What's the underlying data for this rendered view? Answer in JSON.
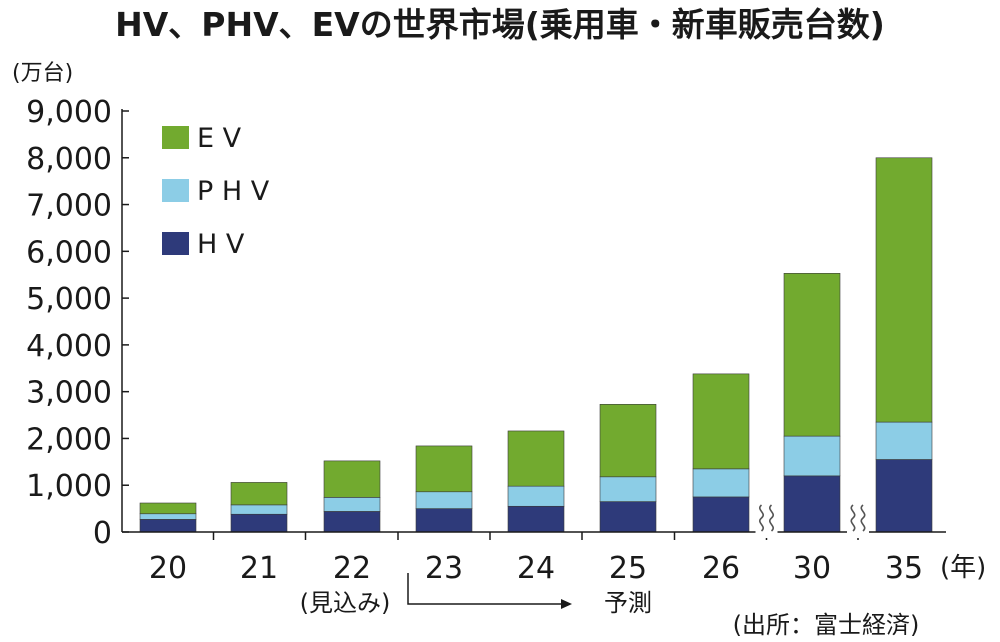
{
  "chart_data": {
    "type": "bar",
    "stacked": true,
    "title": "HV、PHV、EVの世界市場(乗用車・新車販売台数)",
    "ylabel": "(万台)",
    "xlabel": "(年)",
    "ylim": [
      0,
      9000
    ],
    "yticks": [
      "0",
      "1,000",
      "2,000",
      "3,000",
      "4,000",
      "5,000",
      "6,000",
      "7,000",
      "8,000",
      "9,000"
    ],
    "categories": [
      "20",
      "21",
      "22",
      "23",
      "24",
      "25",
      "26",
      "30",
      "35"
    ],
    "axis_break_before": [
      "30",
      "35"
    ],
    "series": [
      {
        "name": "H V",
        "color": "#2e3a7a",
        "values": [
          270,
          380,
          440,
          500,
          550,
          650,
          750,
          1200,
          1550
        ]
      },
      {
        "name": "P H V",
        "color": "#8ccde6",
        "values": [
          120,
          200,
          300,
          360,
          430,
          530,
          600,
          850,
          800
        ]
      },
      {
        "name": "E V",
        "color": "#72aa2f",
        "values": [
          230,
          480,
          780,
          980,
          1180,
          1550,
          2030,
          3480,
          5650
        ]
      }
    ],
    "legend_order": [
      "E V",
      "P H V",
      "H V"
    ],
    "legend_position": "top-left",
    "grid": false,
    "annotations": {
      "estimate": "(見込み)",
      "forecast": "予測",
      "source": "(出所：富士経済)"
    }
  }
}
